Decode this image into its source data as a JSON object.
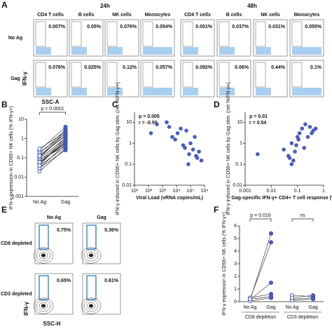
{
  "panel_a": {
    "label": "A",
    "time_points": [
      "24h",
      "48h"
    ],
    "columns": [
      "CD4 T cells",
      "B cells",
      "NK cells",
      "Monocytes",
      "CD4 T cells",
      "B cells",
      "NK cells",
      "Monocytes"
    ],
    "rows": [
      {
        "name": "No Ag",
        "gates": [
          "0.007%",
          "0.05%",
          "0.076%",
          "0.054%",
          "0.001%",
          "0.037%",
          "0.031%",
          "0.055%"
        ]
      },
      {
        "name": "Gag",
        "gates": [
          "0.076%",
          "0.025%",
          "0.12%",
          "0.057%",
          "0.092%",
          "0.06%",
          "0.44%",
          "0.1%"
        ]
      }
    ],
    "y_axis": "IFN-γ",
    "x_axis": "SSC-A"
  },
  "panel_e": {
    "label": "E",
    "columns": [
      "No Ag",
      "Gag"
    ],
    "rows": [
      {
        "name": "CD8 depleted",
        "gates": [
          "0.75%",
          "5.36%"
        ]
      },
      {
        "name": "CD3 depleted",
        "gates": [
          "0.65%",
          "0.61%"
        ]
      }
    ],
    "y_axis": "IFN-γ",
    "x_axis": "SSC-H"
  },
  "chart_data": [
    {
      "panel": "B",
      "type": "paired",
      "ylabel": "IFN-γ expression in CD56+ NK cells (% IFN-γ+)",
      "yscale": "log",
      "ylim": [
        0.001,
        10
      ],
      "yticks": [
        0.001,
        0.01,
        0.1,
        1,
        10
      ],
      "colors": [
        "#ffffff",
        "#4a5cc0"
      ],
      "stroke": "#3b4fb5",
      "groups": [
        {
          "annotation": "p < 0.0001",
          "categories": [
            "No Ag",
            "Gag"
          ],
          "values": [
            [
              0.02,
              0.03,
              0.05,
              0.04,
              0.08,
              0.1,
              0.06,
              0.12,
              0.03,
              0.07,
              0.15,
              0.2,
              0.05,
              0.09,
              0.25,
              0.11,
              0.04,
              0.3,
              0.13,
              0.06
            ],
            [
              0.3,
              0.5,
              0.8,
              1.2,
              0.4,
              2,
              0.6,
              1.5,
              0.25,
              0.9,
              3,
              1.8,
              0.7,
              1.1,
              4,
              2.5,
              0.35,
              2.2,
              1.4,
              0.55
            ]
          ]
        }
      ]
    },
    {
      "panel": "C",
      "type": "scatter",
      "ylabel": "IFN-γ induced in CD56+ NK cells by Gag stim. (net %IFN-γ+)",
      "xlabel": "Viral Load (vRNA copies/mL)",
      "annotations": [
        "p = 0.005",
        "r = -0.59"
      ],
      "color": "#4a5cc0",
      "xscale": "log",
      "yscale": "log",
      "xlim": [
        10,
        1000000
      ],
      "xticks": [
        {
          "value": 10,
          "label": "10¹"
        },
        {
          "value": 100,
          "label": "10²"
        },
        {
          "value": 1000,
          "label": "10³"
        },
        {
          "value": 10000,
          "label": "10⁴"
        },
        {
          "value": 100000,
          "label": "10⁵"
        },
        {
          "value": 1000000,
          "label": "10⁶"
        }
      ],
      "ylim": [
        0.01,
        30
      ],
      "yticks": [
        0.01,
        0.1,
        1,
        10
      ],
      "x": [
        150,
        400,
        2000,
        5000,
        8000,
        20000,
        30000,
        50000,
        80000,
        100000,
        150000,
        200000,
        300000,
        400000,
        600000,
        40000,
        12000,
        3000,
        70000,
        250000
      ],
      "y": [
        3,
        8,
        10,
        2,
        1.5,
        5,
        0.8,
        4,
        0.3,
        1,
        0.5,
        2,
        0.2,
        0.4,
        0.15,
        0.6,
        3,
        6,
        0.1,
        0.25
      ]
    },
    {
      "panel": "D",
      "type": "scatter",
      "ylabel": "IFN-γ induced in CD56+ NK cells by Gag stim. (net %IFN-γ+)",
      "xlabel": "Gag-specific IFN-γ+ CD4+ T cell response (%)",
      "annotations": [
        "p = 0.01",
        "r = 0.54"
      ],
      "color": "#4a5cc0",
      "xscale": "log",
      "yscale": "log",
      "xlim": [
        0.001,
        1
      ],
      "xticks": [
        0.001,
        0.01,
        0.1,
        1
      ],
      "ylim": [
        0.01,
        30
      ],
      "yticks": [
        0.01,
        0.1,
        1,
        10
      ],
      "x": [
        0.003,
        0.03,
        0.05,
        0.06,
        0.08,
        0.07,
        0.1,
        0.12,
        0.09,
        0.15,
        0.2,
        0.3,
        0.25,
        0.4,
        0.5,
        0.06,
        0.11,
        0.18,
        0.35,
        0.045
      ],
      "y": [
        0.3,
        0.5,
        0.2,
        1,
        0.4,
        0.15,
        2,
        3,
        0.8,
        5,
        8,
        6,
        2,
        4,
        5,
        0.1,
        1.5,
        0.6,
        3,
        0.25
      ]
    },
    {
      "panel": "F",
      "type": "paired",
      "ylabel": "IFN-γ expression in CD56+ NK cells (% IFN-γ+)",
      "yscale": "linear",
      "ylim": [
        0,
        6
      ],
      "yticks": [
        0,
        1,
        2,
        3,
        4,
        5,
        6
      ],
      "colors": [
        "#ffffff",
        "#4a5cc0"
      ],
      "stroke": "#3b4fb5",
      "groups": [
        {
          "label": "CD8 depletion",
          "annotation": "p = 0.016",
          "categories": [
            "No Ag",
            "Gag"
          ],
          "values": [
            [
              0.1,
              0.2,
              0.15,
              0.3,
              0.05,
              0.2
            ],
            [
              5.4,
              4.7,
              1.5,
              0.6,
              0.3,
              0.4
            ]
          ]
        },
        {
          "label": "CD3 depletion",
          "annotation": "ns",
          "categories": [
            "No Ag",
            "Gag"
          ],
          "values": [
            [
              0.2,
              0.5,
              0.1,
              0.3
            ],
            [
              0.3,
              0.4,
              0.2,
              0.5
            ]
          ]
        }
      ]
    }
  ]
}
